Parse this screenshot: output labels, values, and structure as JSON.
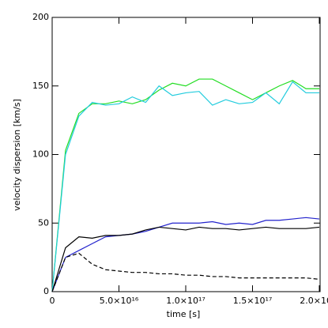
{
  "chart_data": {
    "type": "line",
    "xlabel": "time [s]",
    "ylabel": "velocity dispersion [km/s]",
    "x": [
      0,
      1e+16,
      2e+16,
      3e+16,
      4e+16,
      5e+16,
      6e+16,
      7e+16,
      8e+16,
      9e+16,
      1e+17,
      1.1e+17,
      1.2e+17,
      1.3e+17,
      1.4e+17,
      1.5e+17,
      1.6e+17,
      1.7e+17,
      1.8e+17,
      1.9e+17,
      2e+17
    ],
    "series": [
      {
        "color": "#22dd22",
        "style": "solid",
        "values": [
          0,
          103,
          130,
          137,
          137,
          139,
          137,
          140,
          147,
          152,
          150,
          155,
          155,
          150,
          145,
          140,
          145,
          150,
          154,
          148,
          148
        ]
      },
      {
        "color": "#22ccdd",
        "style": "solid",
        "values": [
          0,
          100,
          128,
          138,
          136,
          137,
          142,
          138,
          150,
          143,
          145,
          146,
          136,
          140,
          137,
          138,
          145,
          137,
          153,
          145,
          145
        ]
      },
      {
        "color": "#2222cc",
        "style": "solid",
        "values": [
          0,
          25,
          30,
          35,
          40,
          41,
          42,
          44,
          47,
          50,
          50,
          50,
          51,
          49,
          50,
          49,
          52,
          52,
          53,
          54,
          53
        ]
      },
      {
        "color": "#000000",
        "style": "solid",
        "values": [
          0,
          32,
          40,
          39,
          41,
          41,
          42,
          45,
          47,
          46,
          45,
          47,
          46,
          46,
          45,
          46,
          47,
          46,
          46,
          46,
          47
        ]
      },
      {
        "color": "#000000",
        "style": "dashed",
        "values": [
          0,
          25,
          28,
          20,
          16,
          15,
          14,
          14,
          13,
          13,
          12,
          12,
          11,
          11,
          10,
          10,
          10,
          10,
          10,
          10,
          9
        ]
      }
    ],
    "xlim": [
      0,
      2e+17
    ],
    "ylim": [
      0,
      200
    ],
    "xticks": [
      0,
      {
        "value": 5e+16,
        "label": "5.0×10¹⁶"
      },
      {
        "value": 1e+17,
        "label": "1.0×10¹⁷"
      },
      {
        "value": 1.5e+17,
        "label": "1.5×10¹⁷"
      },
      {
        "value": 2e+17,
        "label": "2.0×10¹⁷"
      }
    ],
    "yticks": [
      0,
      50,
      100,
      150,
      200
    ]
  }
}
